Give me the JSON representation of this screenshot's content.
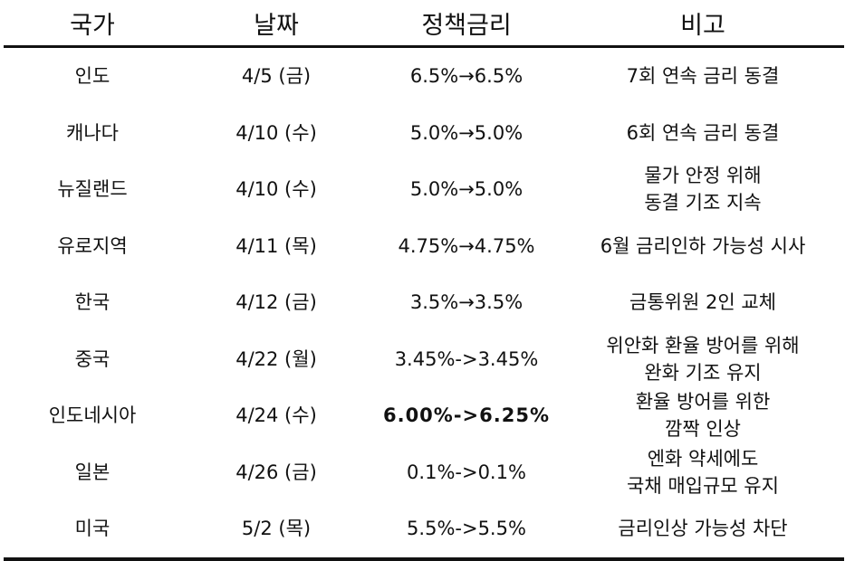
{
  "headers": {
    "country": "국가",
    "date": "날짜",
    "rate": "정책금리",
    "note": "비고"
  },
  "rows": [
    {
      "country": "인도",
      "date": "4/5 (금)",
      "rate": "6.5%→6.5%",
      "note": [
        "7회 연속 금리 동결"
      ]
    },
    {
      "country": "캐나다",
      "date": "4/10 (수)",
      "rate": "5.0%→5.0%",
      "note": [
        "6회 연속 금리 동결"
      ]
    },
    {
      "country": "뉴질랜드",
      "date": "4/10 (수)",
      "rate": "5.0%→5.0%",
      "note": [
        "물가 안정 위해",
        "동결 기조 지속"
      ]
    },
    {
      "country": "유로지역",
      "date": "4/11 (목)",
      "rate": "4.75%→4.75%",
      "note": [
        "6월 금리인하 가능성 시사"
      ]
    },
    {
      "country": "한국",
      "date": "4/12 (금)",
      "rate": "3.5%→3.5%",
      "note": [
        "금통위원 2인 교체"
      ]
    },
    {
      "country": "중국",
      "date": "4/22 (월)",
      "rate": "3.45%->3.45%",
      "note": [
        "위안화 환율 방어를 위해",
        "완화 기조 유지"
      ]
    },
    {
      "country": "인도네시아",
      "date": "4/24 (수)",
      "rate": "6.00%->6.25%",
      "note": [
        "환율 방어를 위한",
        "깜짝 인상"
      ]
    },
    {
      "country": "일본",
      "date": "4/26 (금)",
      "rate": "0.1%->0.1%",
      "note": [
        "엔화 약세에도",
        "국채 매입규모 유지"
      ]
    },
    {
      "country": "미국",
      "date": "5/2 (목)",
      "rate": "5.5%->5.5%",
      "note": [
        "금리인상 가능성 차단"
      ]
    }
  ]
}
